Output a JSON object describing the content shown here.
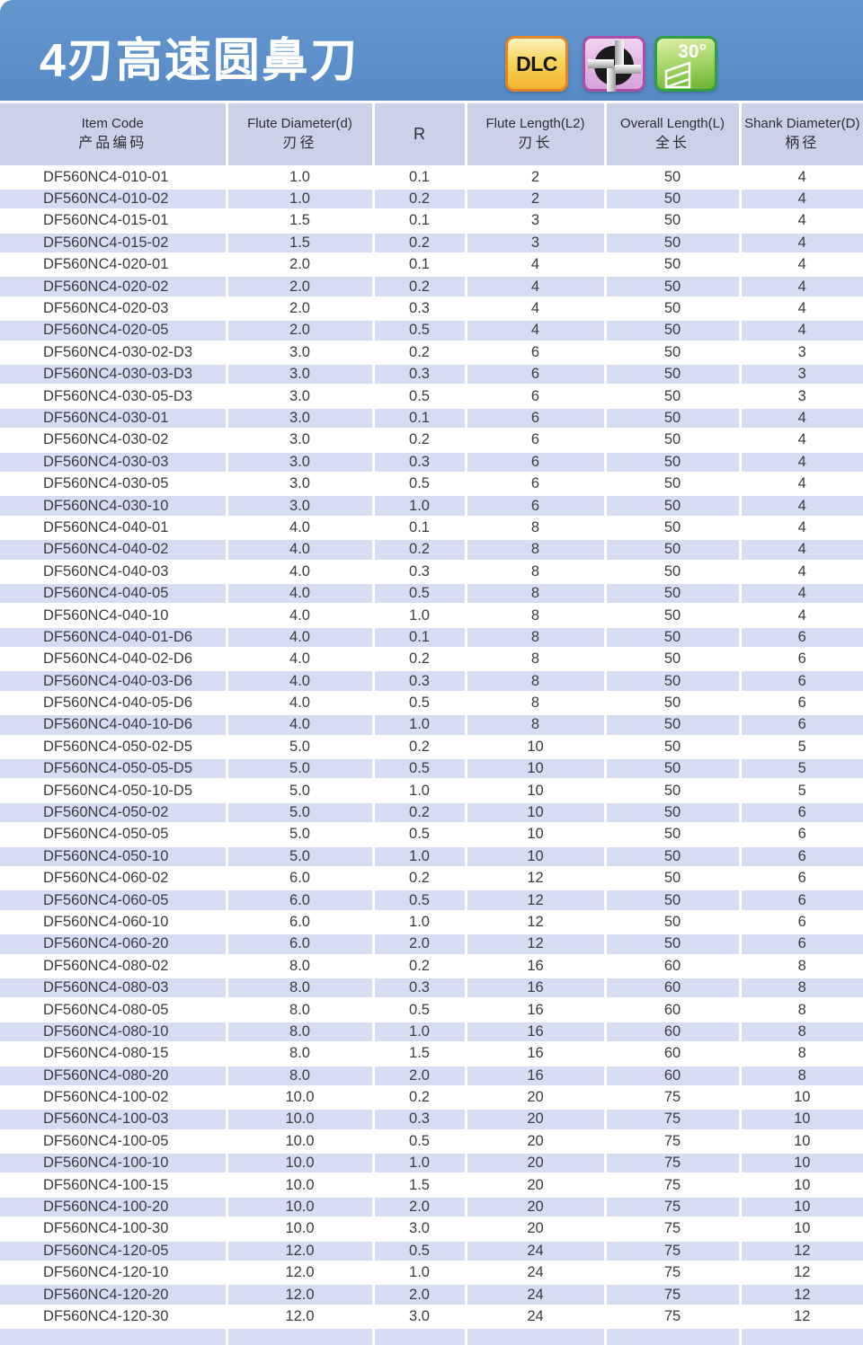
{
  "banner": {
    "title": "4刃高速圆鼻刀",
    "badges": {
      "dlc_label": "DLC",
      "flute_cross_section": "4-flute end mill cross-section",
      "helix_label": "30°"
    }
  },
  "table": {
    "columns": [
      {
        "en": "Item Code",
        "zh": "产品编码"
      },
      {
        "en": "Flute  Diameter(d)",
        "zh": "刃径"
      },
      {
        "en": "R",
        "zh": ""
      },
      {
        "en": "Flute Length(L2)",
        "zh": "刃长"
      },
      {
        "en": "Overall Length(L)",
        "zh": "全长"
      },
      {
        "en": "Shank Diameter(D)",
        "zh": "柄径"
      }
    ],
    "col_names": [
      "cell-item-code",
      "cell-flute-diameter",
      "cell-radius",
      "cell-flute-length",
      "cell-overall-length",
      "cell-shank-diameter"
    ],
    "rows": [
      [
        "DF560NC4-010-01",
        "1.0",
        "0.1",
        "2",
        "50",
        "4"
      ],
      [
        "DF560NC4-010-02",
        "1.0",
        "0.2",
        "2",
        "50",
        "4"
      ],
      [
        "DF560NC4-015-01",
        "1.5",
        "0.1",
        "3",
        "50",
        "4"
      ],
      [
        "DF560NC4-015-02",
        "1.5",
        "0.2",
        "3",
        "50",
        "4"
      ],
      [
        "DF560NC4-020-01",
        "2.0",
        "0.1",
        "4",
        "50",
        "4"
      ],
      [
        "DF560NC4-020-02",
        "2.0",
        "0.2",
        "4",
        "50",
        "4"
      ],
      [
        "DF560NC4-020-03",
        "2.0",
        "0.3",
        "4",
        "50",
        "4"
      ],
      [
        "DF560NC4-020-05",
        "2.0",
        "0.5",
        "4",
        "50",
        "4"
      ],
      [
        "DF560NC4-030-02-D3",
        "3.0",
        "0.2",
        "6",
        "50",
        "3"
      ],
      [
        "DF560NC4-030-03-D3",
        "3.0",
        "0.3",
        "6",
        "50",
        "3"
      ],
      [
        "DF560NC4-030-05-D3",
        "3.0",
        "0.5",
        "6",
        "50",
        "3"
      ],
      [
        "DF560NC4-030-01",
        "3.0",
        "0.1",
        "6",
        "50",
        "4"
      ],
      [
        "DF560NC4-030-02",
        "3.0",
        "0.2",
        "6",
        "50",
        "4"
      ],
      [
        "DF560NC4-030-03",
        "3.0",
        "0.3",
        "6",
        "50",
        "4"
      ],
      [
        "DF560NC4-030-05",
        "3.0",
        "0.5",
        "6",
        "50",
        "4"
      ],
      [
        "DF560NC4-030-10",
        "3.0",
        "1.0",
        "6",
        "50",
        "4"
      ],
      [
        "DF560NC4-040-01",
        "4.0",
        "0.1",
        "8",
        "50",
        "4"
      ],
      [
        "DF560NC4-040-02",
        "4.0",
        "0.2",
        "8",
        "50",
        "4"
      ],
      [
        "DF560NC4-040-03",
        "4.0",
        "0.3",
        "8",
        "50",
        "4"
      ],
      [
        "DF560NC4-040-05",
        "4.0",
        "0.5",
        "8",
        "50",
        "4"
      ],
      [
        "DF560NC4-040-10",
        "4.0",
        "1.0",
        "8",
        "50",
        "4"
      ],
      [
        "DF560NC4-040-01-D6",
        "4.0",
        "0.1",
        "8",
        "50",
        "6"
      ],
      [
        "DF560NC4-040-02-D6",
        "4.0",
        "0.2",
        "8",
        "50",
        "6"
      ],
      [
        "DF560NC4-040-03-D6",
        "4.0",
        "0.3",
        "8",
        "50",
        "6"
      ],
      [
        "DF560NC4-040-05-D6",
        "4.0",
        "0.5",
        "8",
        "50",
        "6"
      ],
      [
        "DF560NC4-040-10-D6",
        "4.0",
        "1.0",
        "8",
        "50",
        "6"
      ],
      [
        "DF560NC4-050-02-D5",
        "5.0",
        "0.2",
        "10",
        "50",
        "5"
      ],
      [
        "DF560NC4-050-05-D5",
        "5.0",
        "0.5",
        "10",
        "50",
        "5"
      ],
      [
        "DF560NC4-050-10-D5",
        "5.0",
        "1.0",
        "10",
        "50",
        "5"
      ],
      [
        "DF560NC4-050-02",
        "5.0",
        "0.2",
        "10",
        "50",
        "6"
      ],
      [
        "DF560NC4-050-05",
        "5.0",
        "0.5",
        "10",
        "50",
        "6"
      ],
      [
        "DF560NC4-050-10",
        "5.0",
        "1.0",
        "10",
        "50",
        "6"
      ],
      [
        "DF560NC4-060-02",
        "6.0",
        "0.2",
        "12",
        "50",
        "6"
      ],
      [
        "DF560NC4-060-05",
        "6.0",
        "0.5",
        "12",
        "50",
        "6"
      ],
      [
        "DF560NC4-060-10",
        "6.0",
        "1.0",
        "12",
        "50",
        "6"
      ],
      [
        "DF560NC4-060-20",
        "6.0",
        "2.0",
        "12",
        "50",
        "6"
      ],
      [
        "DF560NC4-080-02",
        "8.0",
        "0.2",
        "16",
        "60",
        "8"
      ],
      [
        "DF560NC4-080-03",
        "8.0",
        "0.3",
        "16",
        "60",
        "8"
      ],
      [
        "DF560NC4-080-05",
        "8.0",
        "0.5",
        "16",
        "60",
        "8"
      ],
      [
        "DF560NC4-080-10",
        "8.0",
        "1.0",
        "16",
        "60",
        "8"
      ],
      [
        "DF560NC4-080-15",
        "8.0",
        "1.5",
        "16",
        "60",
        "8"
      ],
      [
        "DF560NC4-080-20",
        "8.0",
        "2.0",
        "16",
        "60",
        "8"
      ],
      [
        "DF560NC4-100-02",
        "10.0",
        "0.2",
        "20",
        "75",
        "10"
      ],
      [
        "DF560NC4-100-03",
        "10.0",
        "0.3",
        "20",
        "75",
        "10"
      ],
      [
        "DF560NC4-100-05",
        "10.0",
        "0.5",
        "20",
        "75",
        "10"
      ],
      [
        "DF560NC4-100-10",
        "10.0",
        "1.0",
        "20",
        "75",
        "10"
      ],
      [
        "DF560NC4-100-15",
        "10.0",
        "1.5",
        "20",
        "75",
        "10"
      ],
      [
        "DF560NC4-100-20",
        "10.0",
        "2.0",
        "20",
        "75",
        "10"
      ],
      [
        "DF560NC4-100-30",
        "10.0",
        "3.0",
        "20",
        "75",
        "10"
      ],
      [
        "DF560NC4-120-05",
        "12.0",
        "0.5",
        "24",
        "75",
        "12"
      ],
      [
        "DF560NC4-120-10",
        "12.0",
        "1.0",
        "24",
        "75",
        "12"
      ],
      [
        "DF560NC4-120-20",
        "12.0",
        "2.0",
        "24",
        "75",
        "12"
      ],
      [
        "DF560NC4-120-30",
        "12.0",
        "3.0",
        "24",
        "75",
        "12"
      ]
    ]
  },
  "colors": {
    "banner_blue": "#5d90ca",
    "header_bg": "#cbd2e8",
    "row_alt_bg": "#d6ddf3",
    "dlc_badge_orange": "#f3b22e",
    "flute_badge_purple": "#a94fa8",
    "helix_badge_green": "#6ab32f",
    "text": "#3c3c40"
  }
}
